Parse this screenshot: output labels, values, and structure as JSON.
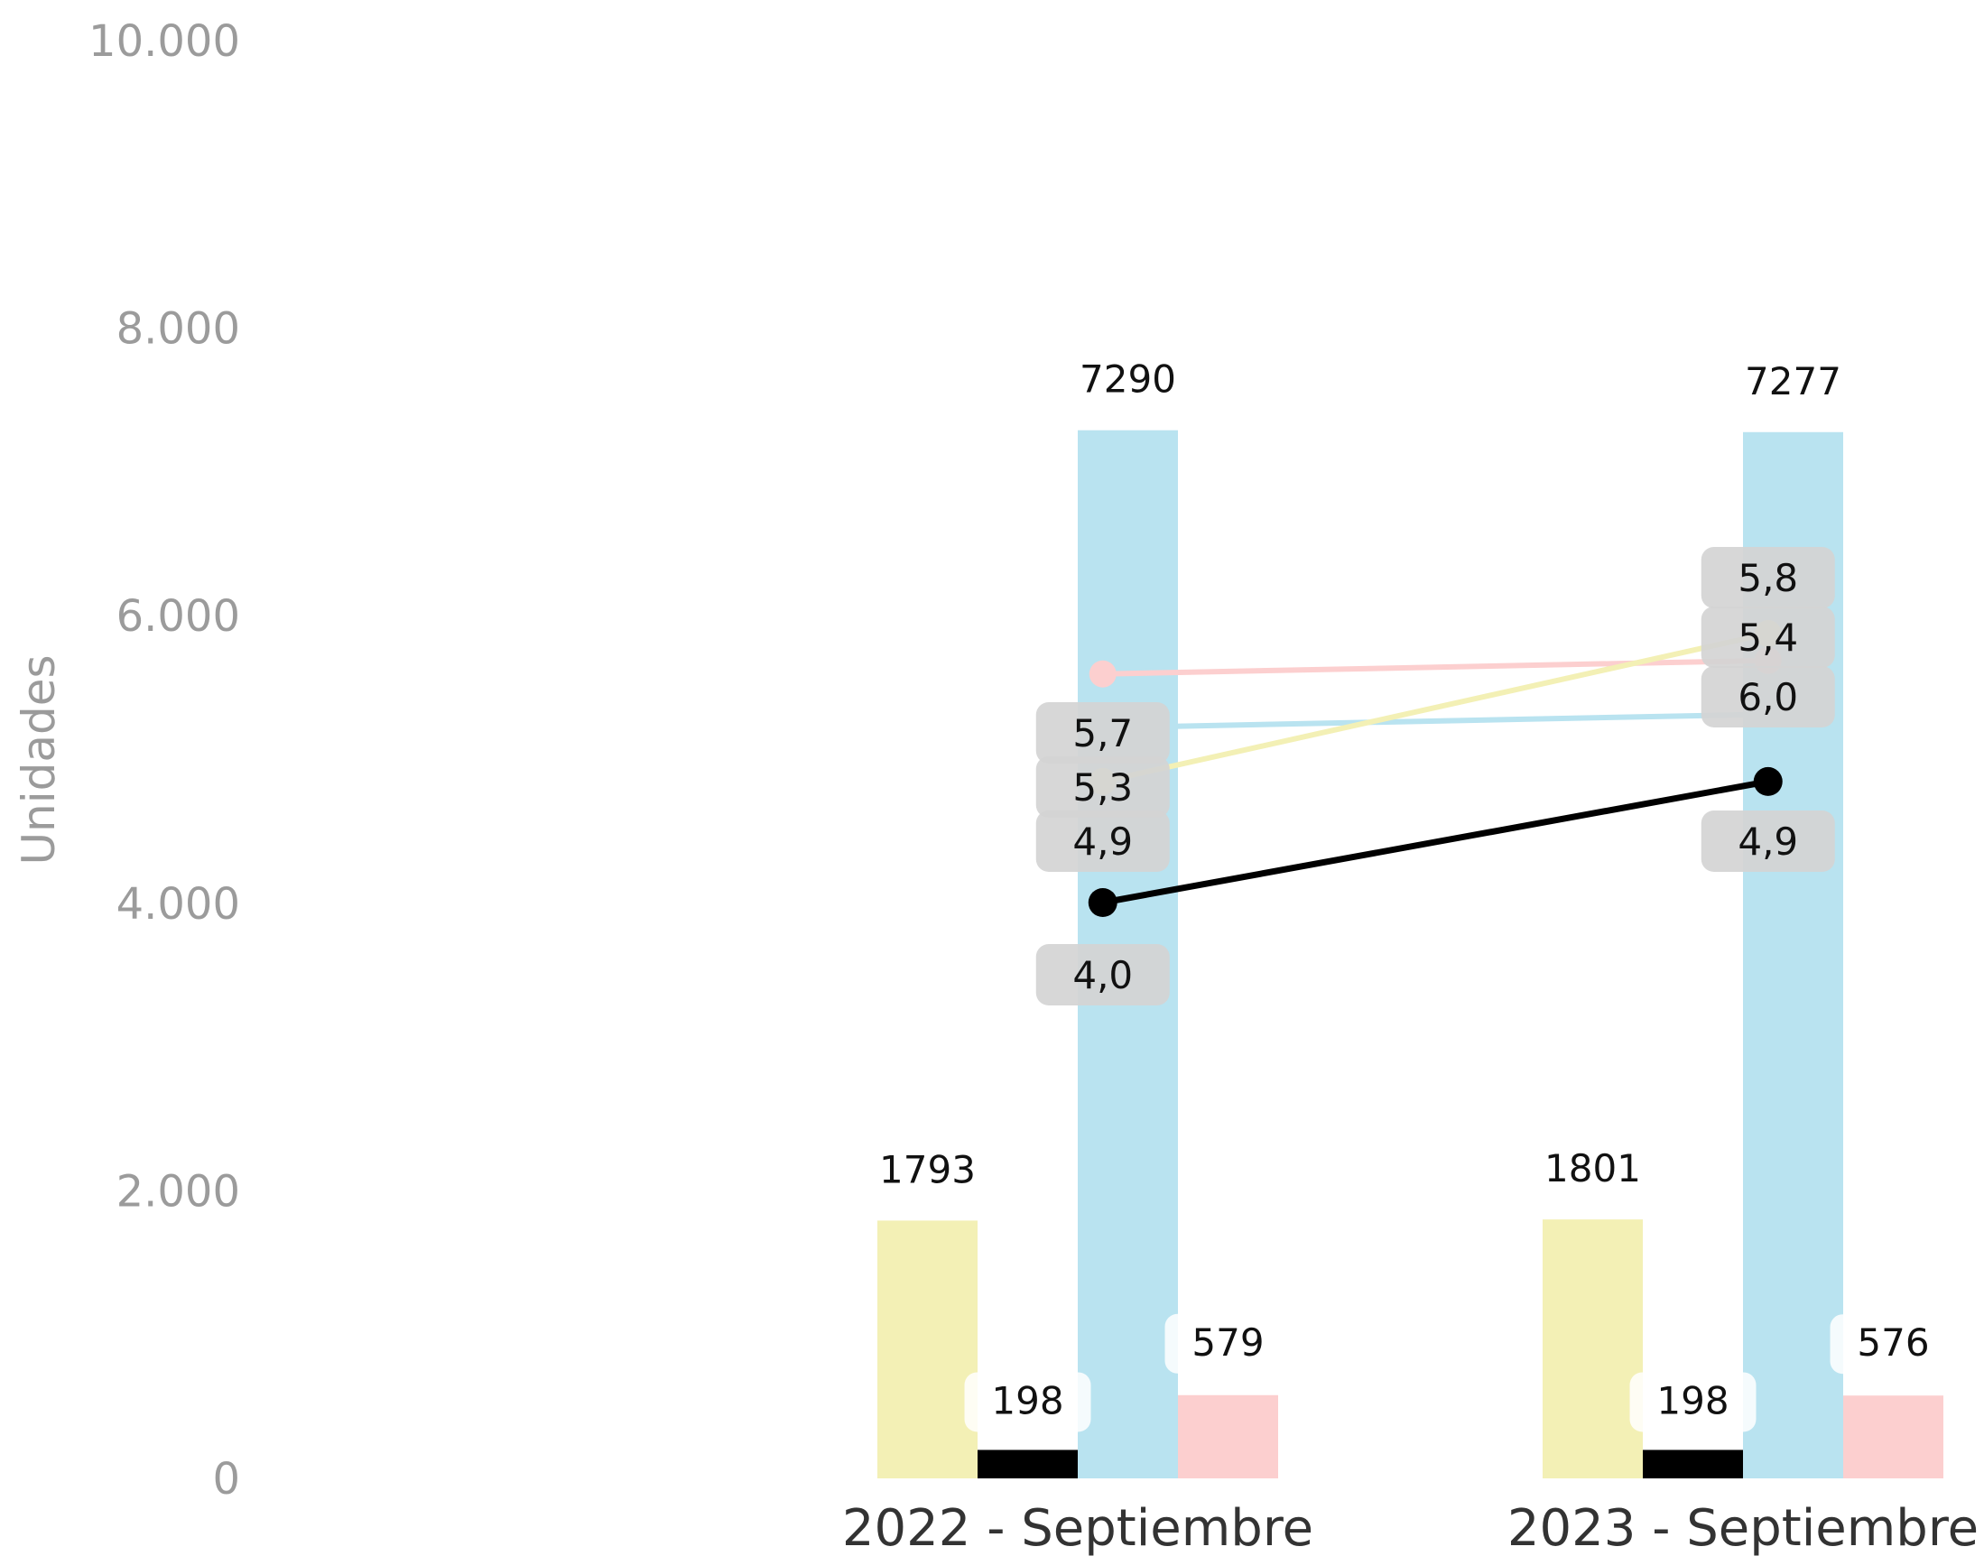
{
  "chart_data": {
    "type": "bar",
    "ylabel": "Unidades",
    "ylim": [
      0,
      10000
    ],
    "yticks": [
      "0",
      "2.000",
      "4.000",
      "6.000",
      "8.000",
      "10.000"
    ],
    "categories": [
      "2022 - Septiembre",
      "2023 - Septiembre"
    ],
    "bar_series": [
      {
        "color": "#f3f0b5",
        "values": [
          1793,
          1801
        ],
        "labels": [
          "1793",
          "1801"
        ]
      },
      {
        "color": "#000000",
        "values": [
          198,
          198
        ],
        "labels": [
          "198",
          "198"
        ]
      },
      {
        "color": "#b9e3f0",
        "values": [
          7290,
          7277
        ],
        "labels": [
          "7290",
          "7277"
        ]
      },
      {
        "color": "#fccfcf",
        "values": [
          579,
          576
        ],
        "labels": [
          "579",
          "576"
        ]
      }
    ],
    "line_series": [
      {
        "color": "#fccfcf",
        "values": [
          5.7,
          5.8
        ],
        "labels": [
          "5,7",
          "5,8"
        ]
      },
      {
        "color": "#b9e3f0",
        "values": [
          5.3,
          5.4
        ],
        "labels": [
          "5,3",
          "5,4"
        ]
      },
      {
        "color": "#f3f0b5",
        "values": [
          4.9,
          6.0
        ],
        "labels": [
          "4,9",
          "6,0"
        ]
      },
      {
        "color": "#000000",
        "values": [
          4.0,
          4.9
        ],
        "labels": [
          "4,0",
          "4,9"
        ]
      }
    ]
  }
}
